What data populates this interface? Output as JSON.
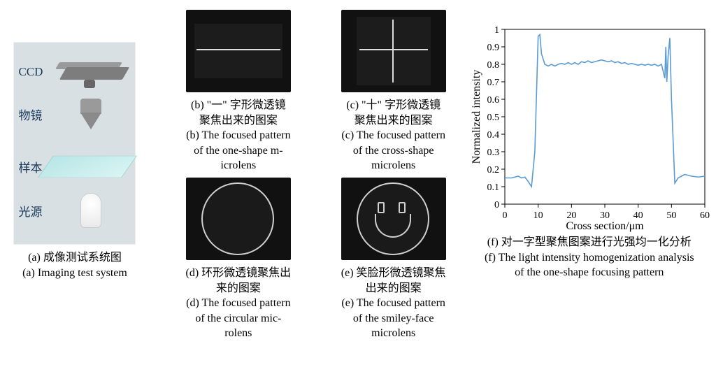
{
  "panel_a": {
    "labels": {
      "ccd": "CCD",
      "objective": "物镜",
      "sample": "样本",
      "source": "光源"
    },
    "caption_cn": "(a) 成像测试系统图",
    "caption_en": "(a) Imaging test system"
  },
  "panel_b": {
    "caption_cn1": "(b) \"一\" 字形微透镜",
    "caption_cn2": "聚焦出来的图案",
    "caption_en1": "(b) The focused pattern",
    "caption_en2": "of the one-shape m-",
    "caption_en3": "icrolens"
  },
  "panel_c": {
    "caption_cn1": "(c) \"十\" 字形微透镜",
    "caption_cn2": "聚焦出来的图案",
    "caption_en1": "(c) The focused pattern",
    "caption_en2": "of the cross-shape",
    "caption_en3": "microlens"
  },
  "panel_d": {
    "caption_cn1": "(d) 环形微透镜聚焦出",
    "caption_cn2": "来的图案",
    "caption_en1": "(d) The focused pattern",
    "caption_en2": "of the circular mic-",
    "caption_en3": "rolens"
  },
  "panel_e": {
    "caption_cn1": "(e) 笑脸形微透镜聚焦",
    "caption_cn2": "出来的图案",
    "caption_en1": "(e) The focused pattern",
    "caption_en2": "of the smiley-face",
    "caption_en3": "microlens"
  },
  "panel_f": {
    "caption_cn": "(f) 对一字型聚焦图案进行光强均一化分析",
    "caption_en1": "(f) The light intensity homogenization analysis",
    "caption_en2": "of the one-shape focusing pattern",
    "chart": {
      "type": "line",
      "xlabel": "Cross section/μm",
      "ylabel": "Normalized intensity",
      "xlim": [
        0,
        60
      ],
      "ylim": [
        0,
        1
      ],
      "xticks": [
        0,
        10,
        20,
        30,
        40,
        50,
        60
      ],
      "yticks": [
        0,
        0.1,
        0.2,
        0.3,
        0.4,
        0.5,
        0.6,
        0.7,
        0.8,
        0.9,
        1
      ],
      "line_color": "#5b9bd5",
      "axis_color": "#000000",
      "background_color": "#ffffff",
      "label_fontsize": 16,
      "tick_fontsize": 14,
      "line_width": 1.6,
      "data": [
        [
          0,
          0.15
        ],
        [
          2,
          0.15
        ],
        [
          4,
          0.16
        ],
        [
          5,
          0.15
        ],
        [
          6,
          0.155
        ],
        [
          7,
          0.13
        ],
        [
          8,
          0.1
        ],
        [
          9,
          0.3
        ],
        [
          10,
          0.96
        ],
        [
          10.5,
          0.97
        ],
        [
          11,
          0.86
        ],
        [
          12,
          0.8
        ],
        [
          13,
          0.79
        ],
        [
          14,
          0.8
        ],
        [
          15,
          0.79
        ],
        [
          16,
          0.8
        ],
        [
          17,
          0.805
        ],
        [
          18,
          0.8
        ],
        [
          19,
          0.81
        ],
        [
          20,
          0.8
        ],
        [
          21,
          0.81
        ],
        [
          22,
          0.8
        ],
        [
          23,
          0.815
        ],
        [
          24,
          0.81
        ],
        [
          25,
          0.82
        ],
        [
          26,
          0.81
        ],
        [
          27,
          0.815
        ],
        [
          28,
          0.82
        ],
        [
          29,
          0.825
        ],
        [
          30,
          0.82
        ],
        [
          31,
          0.815
        ],
        [
          32,
          0.82
        ],
        [
          33,
          0.81
        ],
        [
          34,
          0.815
        ],
        [
          35,
          0.805
        ],
        [
          36,
          0.81
        ],
        [
          37,
          0.8
        ],
        [
          38,
          0.805
        ],
        [
          39,
          0.8
        ],
        [
          40,
          0.795
        ],
        [
          41,
          0.8
        ],
        [
          42,
          0.795
        ],
        [
          43,
          0.8
        ],
        [
          44,
          0.795
        ],
        [
          45,
          0.8
        ],
        [
          46,
          0.79
        ],
        [
          47,
          0.8
        ],
        [
          48,
          0.72
        ],
        [
          48.3,
          0.9
        ],
        [
          48.6,
          0.7
        ],
        [
          49,
          0.85
        ],
        [
          49.5,
          0.95
        ],
        [
          50,
          0.6
        ],
        [
          51,
          0.12
        ],
        [
          52,
          0.15
        ],
        [
          53,
          0.16
        ],
        [
          54,
          0.17
        ],
        [
          56,
          0.16
        ],
        [
          58,
          0.155
        ],
        [
          60,
          0.16
        ]
      ]
    }
  }
}
